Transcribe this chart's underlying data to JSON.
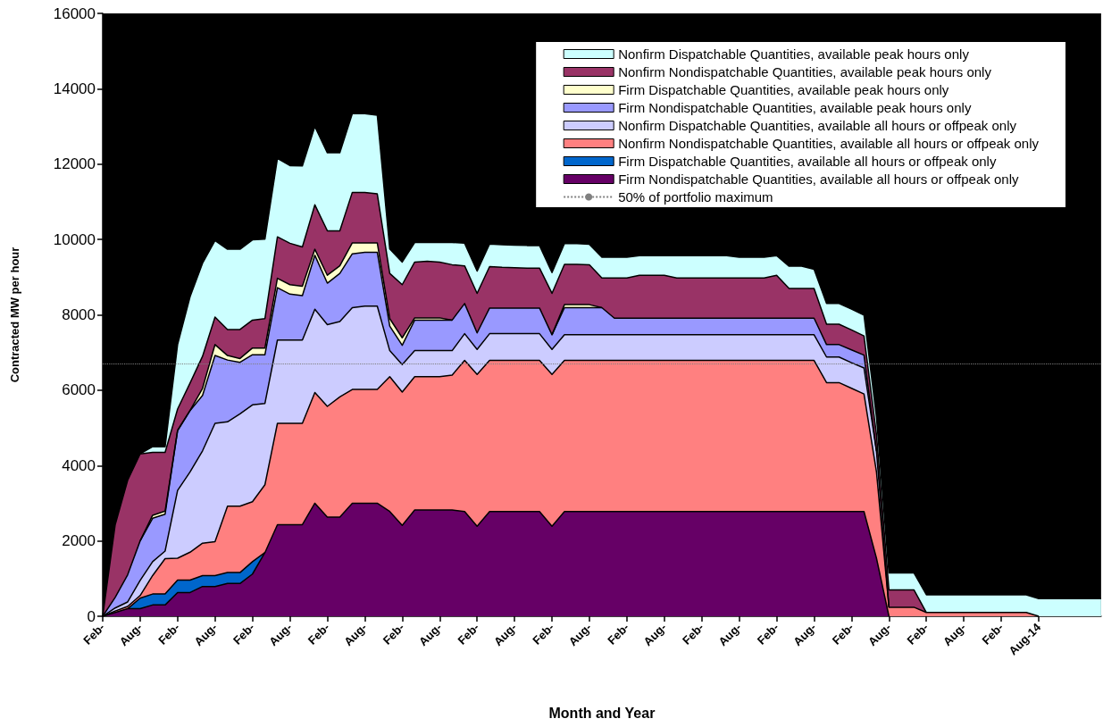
{
  "chart_data": {
    "type": "area",
    "stacked": true,
    "xlabel": "Month and Year",
    "ylabel": "Contracted MW per hour",
    "categories": [
      "Feb-",
      null,
      null,
      "Aug-",
      null,
      null,
      "Feb-",
      null,
      null,
      "Aug-",
      null,
      null,
      "Feb-",
      null,
      null,
      "Aug-",
      null,
      null,
      "Feb-",
      null,
      null,
      "Aug-",
      null,
      null,
      "Feb-",
      null,
      null,
      "Aug-",
      null,
      null,
      "Feb-",
      null,
      null,
      "Aug-",
      null,
      null,
      "Feb-",
      null,
      null,
      "Aug-",
      null,
      null,
      "Feb-",
      null,
      null,
      "Aug-",
      null,
      null,
      "Feb-",
      null,
      null,
      "Aug-",
      null,
      null,
      "Feb-",
      null,
      null,
      "Aug-",
      null,
      null,
      "Feb-",
      null,
      null,
      "Aug-",
      null,
      null,
      "Feb-",
      null,
      null,
      "Aug-",
      null,
      null,
      "Feb-",
      null,
      null,
      "Aug-14",
      null,
      null,
      null,
      null,
      null
    ],
    "series": [
      {
        "name": "Firm Nondispatchable Quantities, available all hours or offpeak only",
        "color": "#660066",
        "values": [
          0,
          100,
          200,
          200,
          300,
          300,
          630,
          630,
          790,
          790,
          870,
          870,
          1120,
          1690,
          2430,
          2430,
          2430,
          3000,
          2630,
          2630,
          3000,
          3000,
          3000,
          2780,
          2410,
          2820,
          2820,
          2820,
          2820,
          2780,
          2390,
          2780,
          2780,
          2780,
          2780,
          2780,
          2390,
          2780,
          2780,
          2780,
          2780,
          2780,
          2780,
          2780,
          2780,
          2780,
          2780,
          2780,
          2780,
          2780,
          2780,
          2780,
          2780,
          2780,
          2780,
          2780,
          2780,
          2780,
          2780,
          2780,
          2780,
          2780,
          1540,
          0,
          null,
          null,
          null,
          null,
          null,
          null,
          null,
          null,
          null,
          null,
          null,
          null,
          null,
          null,
          null,
          null,
          null
        ]
      },
      {
        "name": "Firm Dispatchable Quantities, available all hours or offpeak only",
        "color": "#0066cc",
        "values": [
          null,
          null,
          0,
          280,
          290,
          290,
          330,
          330,
          290,
          290,
          290,
          290,
          330,
          0,
          null,
          null,
          null,
          null,
          null,
          null,
          null,
          null,
          null,
          null,
          null,
          null,
          null,
          null,
          null,
          null,
          null,
          null,
          null,
          null,
          null,
          null,
          null,
          null,
          null,
          null,
          null,
          null,
          null,
          null,
          null,
          null,
          null,
          null,
          null,
          null,
          null,
          null,
          null,
          null,
          null,
          null,
          null,
          null,
          null,
          null,
          null,
          null,
          null,
          null,
          null,
          null,
          null,
          null,
          null,
          null,
          null,
          null,
          null,
          null,
          null,
          null,
          null,
          null,
          null,
          null,
          null
        ]
      },
      {
        "name": "Nonfirm Nondispatchable Quantities, available all hours or offpeak only",
        "color": "#ff8080",
        "values": [
          0,
          40,
          60,
          70,
          490,
          940,
          580,
          740,
          860,
          900,
          1760,
          1760,
          1590,
          1800,
          2690,
          2690,
          2690,
          2940,
          2940,
          3190,
          3020,
          3020,
          3020,
          3580,
          3540,
          3540,
          3540,
          3540,
          3580,
          4010,
          4030,
          4010,
          4010,
          4010,
          4010,
          4010,
          4030,
          4010,
          4010,
          4010,
          4010,
          4010,
          4010,
          4010,
          4010,
          4010,
          4010,
          4010,
          4010,
          4010,
          4010,
          4010,
          4010,
          4010,
          4010,
          4010,
          4010,
          4010,
          3420,
          3420,
          3270,
          3120,
          2290,
          240,
          240,
          240,
          100,
          100,
          100,
          100,
          100,
          100,
          100,
          100,
          100,
          0,
          null,
          null,
          null,
          null,
          null
        ]
      },
      {
        "name": "Nonfirm Dispatchable Quantities, available all hours or offpeak only",
        "color": "#ccccff",
        "values": [
          0,
          80,
          120,
          400,
          370,
          200,
          1800,
          2130,
          2450,
          3140,
          2240,
          2450,
          2570,
          2160,
          2210,
          2210,
          2210,
          2210,
          2170,
          2000,
          2170,
          2210,
          2210,
          690,
          730,
          690,
          690,
          690,
          650,
          710,
          660,
          710,
          710,
          710,
          710,
          710,
          660,
          680,
          680,
          680,
          680,
          680,
          680,
          680,
          680,
          680,
          680,
          680,
          680,
          680,
          680,
          680,
          680,
          680,
          680,
          680,
          680,
          680,
          680,
          680,
          680,
          690,
          550,
          0,
          null,
          null,
          null,
          null,
          null,
          null,
          null,
          null,
          null,
          null,
          null,
          null,
          null,
          null,
          null,
          null,
          null
        ]
      },
      {
        "name": "Firm Nondispatchable Quantities, available peak hours only",
        "color": "#9999ff",
        "values": [
          0,
          280,
          720,
          1050,
          1150,
          980,
          1590,
          1630,
          1470,
          1800,
          1640,
          1370,
          1330,
          1290,
          1390,
          1220,
          1180,
          1430,
          1100,
          1280,
          1430,
          1430,
          1430,
          650,
          510,
          810,
          810,
          810,
          810,
          800,
          440,
          680,
          680,
          680,
          680,
          680,
          390,
          720,
          720,
          720,
          720,
          440,
          440,
          440,
          440,
          440,
          440,
          440,
          440,
          440,
          440,
          440,
          440,
          440,
          440,
          440,
          440,
          440,
          330,
          330,
          340,
          340,
          0,
          null,
          null,
          null,
          null,
          null,
          null,
          null,
          null,
          null,
          null,
          null,
          null,
          null,
          null,
          null,
          null,
          null,
          null
        ]
      },
      {
        "name": "Firm Dispatchable Quantities, available peak hours only",
        "color": "#ffffcc",
        "values": [
          null,
          null,
          null,
          0,
          80,
          80,
          0,
          0,
          190,
          290,
          120,
          100,
          180,
          180,
          250,
          250,
          250,
          160,
          210,
          200,
          290,
          250,
          250,
          200,
          200,
          60,
          60,
          60,
          0,
          null,
          null,
          null,
          null,
          null,
          null,
          null,
          0,
          80,
          80,
          80,
          0,
          null,
          null,
          null,
          null,
          null,
          null,
          null,
          null,
          null,
          null,
          null,
          null,
          null,
          null,
          null,
          null,
          null,
          null,
          null,
          null,
          null,
          null,
          null,
          null,
          null,
          null,
          null,
          null,
          null,
          null,
          null,
          null,
          null,
          null,
          null,
          null,
          null,
          null,
          null,
          null
        ]
      },
      {
        "name": "Nonfirm Nondispatchable Quantities, available peak hours only",
        "color": "#993366",
        "values": [
          0,
          1930,
          2510,
          2310,
          1670,
          1560,
          570,
          730,
          850,
          730,
          690,
          770,
          740,
          780,
          1100,
          1100,
          1040,
          1180,
          1180,
          930,
          1340,
          1340,
          1300,
          1200,
          1410,
          1480,
          1500,
          1480,
          1470,
          1000,
          1050,
          1100,
          1080,
          1070,
          1060,
          1060,
          1100,
          1070,
          1070,
          1060,
          790,
          1070,
          1070,
          1140,
          1140,
          1140,
          1070,
          1070,
          1070,
          1070,
          1070,
          1070,
          1070,
          1070,
          1140,
          790,
          790,
          790,
          540,
          540,
          530,
          510,
          440,
          460,
          460,
          460,
          0,
          null,
          null,
          null,
          null,
          null,
          null,
          null,
          null,
          null,
          null,
          null,
          null,
          null,
          null
        ]
      },
      {
        "name": "Nonfirm Dispatchable Quantities, available peak hours only",
        "color": "#ccffff",
        "values": [
          null,
          null,
          null,
          0,
          150,
          150,
          1710,
          2290,
          2470,
          2030,
          2130,
          2130,
          2130,
          2110,
          2080,
          2060,
          2150,
          2080,
          2070,
          2070,
          2090,
          2090,
          2090,
          650,
          600,
          520,
          500,
          520,
          590,
          600,
          590,
          600,
          600,
          600,
          600,
          600,
          550,
          550,
          550,
          540,
          550,
          550,
          550,
          520,
          520,
          520,
          590,
          590,
          590,
          590,
          590,
          550,
          550,
          550,
          520,
          590,
          590,
          510,
          550,
          550,
          550,
          550,
          470,
          450,
          450,
          450,
          470,
          470,
          470,
          470,
          470,
          470,
          470,
          470,
          470,
          470,
          470,
          470,
          470,
          470,
          470
        ]
      }
    ],
    "ylim": [
      0,
      16000
    ],
    "yticks": [
      0,
      2000,
      4000,
      6000,
      8000,
      10000,
      12000,
      14000,
      16000
    ],
    "ref_lines": [
      {
        "axis": "y",
        "value": 6700,
        "label": "50% of portfolio maximum",
        "color": "#808080",
        "line_style": "dotted"
      }
    ],
    "legend": "top right",
    "marker": "none"
  }
}
